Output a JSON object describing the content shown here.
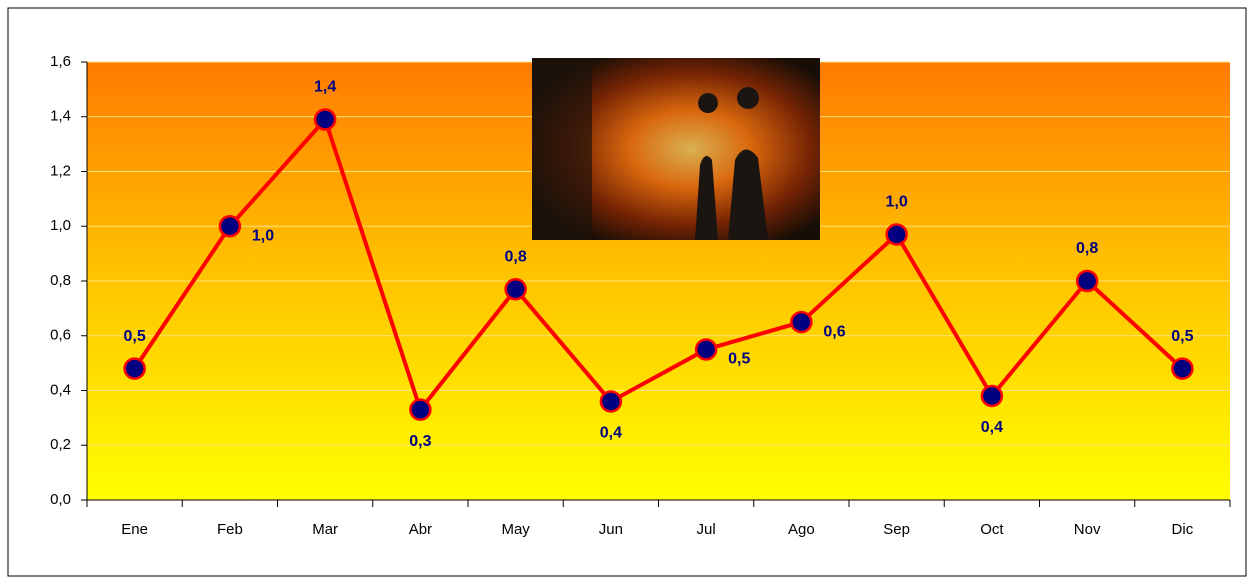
{
  "chart_data": {
    "type": "line",
    "categories": [
      "Ene",
      "Feb",
      "Mar",
      "Abr",
      "May",
      "Jun",
      "Jul",
      "Ago",
      "Sep",
      "Oct",
      "Nov",
      "Dic"
    ],
    "values": [
      0.48,
      1.0,
      1.39,
      0.33,
      0.77,
      0.36,
      0.55,
      0.65,
      0.97,
      0.38,
      0.8,
      0.48
    ],
    "value_labels": [
      "0,5",
      "1,0",
      "1,4",
      "0,3",
      "0,8",
      "0,4",
      "0,5",
      "0,6",
      "1,0",
      "0,4",
      "0,8",
      "0,5"
    ],
    "color": "#ff0000",
    "marker_color": "#000080",
    "ylim": [
      0,
      1.6
    ],
    "yticks": [
      {
        "value": 0,
        "label": "0,0"
      },
      {
        "value": 0.2,
        "label": "0,2"
      },
      {
        "value": 0.4,
        "label": "0,4"
      },
      {
        "value": 0.6,
        "label": "0,6"
      },
      {
        "value": 0.8,
        "label": "0,8"
      },
      {
        "value": 1.0,
        "label": "1,0"
      },
      {
        "value": 1.2,
        "label": "1,2"
      },
      {
        "value": 1.4,
        "label": "1,4"
      },
      {
        "value": 1.6,
        "label": "1,6"
      }
    ],
    "grid": true
  }
}
